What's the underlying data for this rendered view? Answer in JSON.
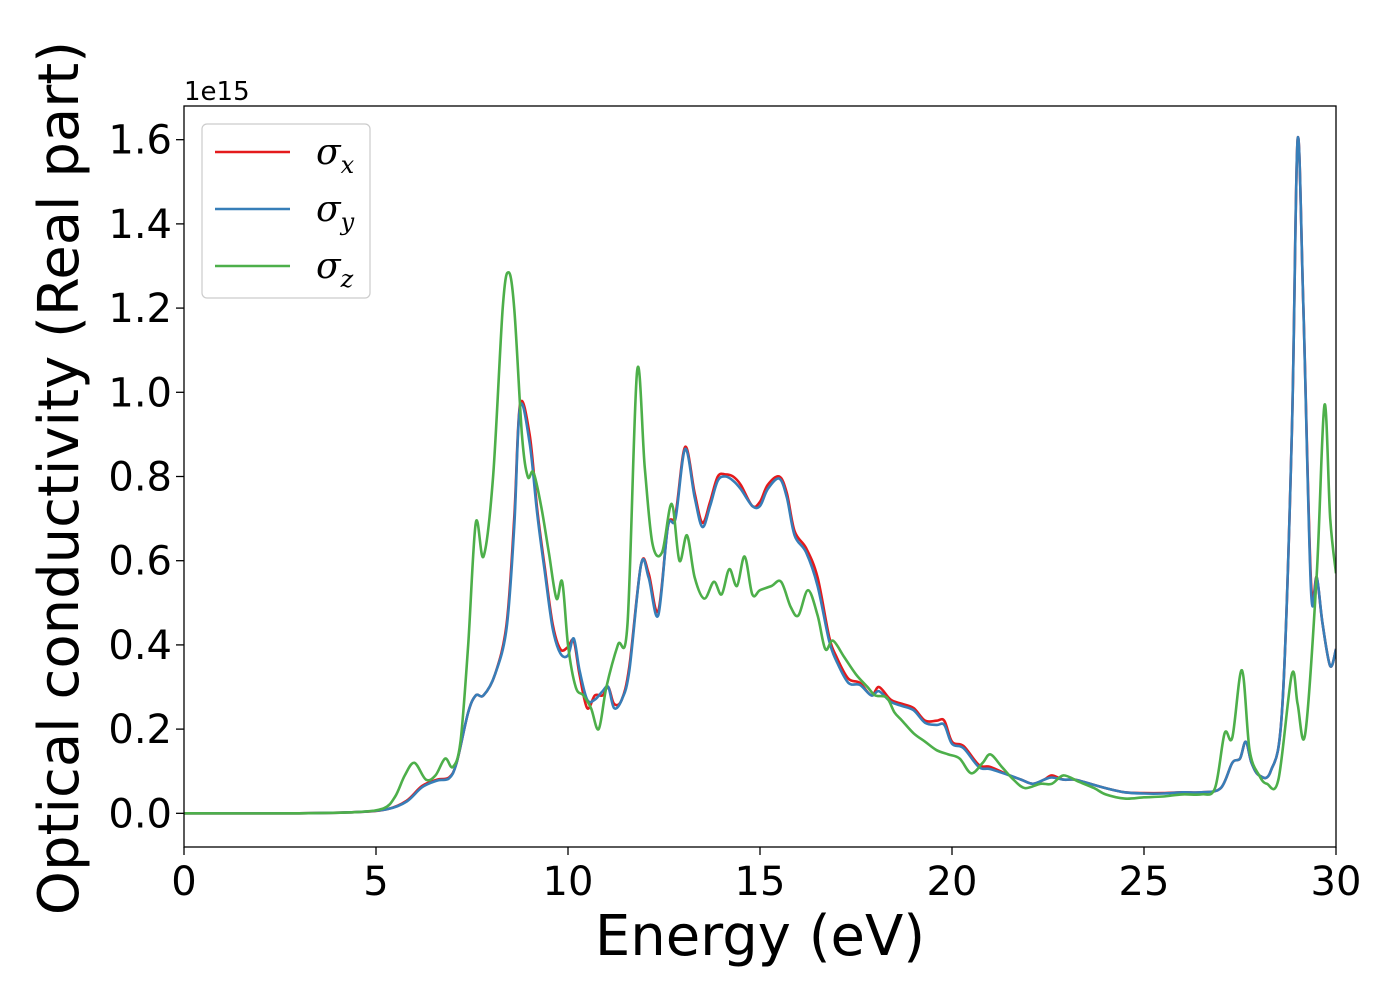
{
  "chart_data": {
    "type": "line",
    "title": "",
    "xlabel": "Energy (eV)",
    "ylabel": "Optical conductivity (Real part)",
    "y_offset_label": "1e15",
    "xlim": [
      0,
      30
    ],
    "ylim": [
      -0.08,
      1.68
    ],
    "x_ticks": [
      0,
      5,
      10,
      15,
      20,
      25,
      30
    ],
    "y_ticks": [
      0.0,
      0.2,
      0.4,
      0.6,
      0.8,
      1.0,
      1.2,
      1.4,
      1.6
    ],
    "x_tick_labels": [
      "0",
      "5",
      "10",
      "15",
      "20",
      "25",
      "30"
    ],
    "y_tick_labels": [
      "0.0",
      "0.2",
      "0.4",
      "0.6",
      "0.8",
      "1.0",
      "1.2",
      "1.4",
      "1.6"
    ],
    "grid": false,
    "legend_position": "top-left",
    "series": [
      {
        "name": "σx",
        "symbol": "σ",
        "subscript": "x",
        "color": "#e41a1c",
        "points": [
          [
            0,
            0
          ],
          [
            3,
            0
          ],
          [
            4.5,
            0.003
          ],
          [
            5.3,
            0.01
          ],
          [
            5.8,
            0.03
          ],
          [
            6.2,
            0.065
          ],
          [
            6.6,
            0.08
          ],
          [
            6.9,
            0.085
          ],
          [
            7.1,
            0.12
          ],
          [
            7.4,
            0.24
          ],
          [
            7.6,
            0.28
          ],
          [
            7.8,
            0.28
          ],
          [
            8.1,
            0.33
          ],
          [
            8.4,
            0.45
          ],
          [
            8.6,
            0.7
          ],
          [
            8.75,
            0.97
          ],
          [
            9.0,
            0.9
          ],
          [
            9.2,
            0.72
          ],
          [
            9.4,
            0.58
          ],
          [
            9.6,
            0.45
          ],
          [
            9.8,
            0.39
          ],
          [
            10.0,
            0.395
          ],
          [
            10.15,
            0.41
          ],
          [
            10.3,
            0.33
          ],
          [
            10.5,
            0.25
          ],
          [
            10.7,
            0.28
          ],
          [
            10.9,
            0.28
          ],
          [
            11.05,
            0.3
          ],
          [
            11.2,
            0.26
          ],
          [
            11.4,
            0.27
          ],
          [
            11.6,
            0.35
          ],
          [
            11.9,
            0.59
          ],
          [
            12.1,
            0.57
          ],
          [
            12.35,
            0.48
          ],
          [
            12.6,
            0.68
          ],
          [
            12.8,
            0.71
          ],
          [
            13.05,
            0.87
          ],
          [
            13.3,
            0.76
          ],
          [
            13.5,
            0.69
          ],
          [
            13.7,
            0.74
          ],
          [
            13.9,
            0.8
          ],
          [
            14.1,
            0.805
          ],
          [
            14.3,
            0.8
          ],
          [
            14.5,
            0.78
          ],
          [
            14.8,
            0.73
          ],
          [
            15.0,
            0.74
          ],
          [
            15.2,
            0.78
          ],
          [
            15.5,
            0.8
          ],
          [
            15.7,
            0.76
          ],
          [
            15.9,
            0.67
          ],
          [
            16.2,
            0.63
          ],
          [
            16.5,
            0.56
          ],
          [
            16.8,
            0.42
          ],
          [
            17.0,
            0.37
          ],
          [
            17.3,
            0.32
          ],
          [
            17.6,
            0.31
          ],
          [
            17.9,
            0.28
          ],
          [
            18.1,
            0.3
          ],
          [
            18.4,
            0.27
          ],
          [
            18.7,
            0.26
          ],
          [
            19.0,
            0.25
          ],
          [
            19.3,
            0.22
          ],
          [
            19.6,
            0.22
          ],
          [
            19.8,
            0.22
          ],
          [
            20.0,
            0.17
          ],
          [
            20.3,
            0.16
          ],
          [
            20.7,
            0.115
          ],
          [
            21.0,
            0.11
          ],
          [
            21.5,
            0.09
          ],
          [
            21.8,
            0.08
          ],
          [
            22.1,
            0.07
          ],
          [
            22.4,
            0.08
          ],
          [
            22.6,
            0.09
          ],
          [
            22.9,
            0.08
          ],
          [
            23.2,
            0.08
          ],
          [
            23.6,
            0.07
          ],
          [
            24.0,
            0.06
          ],
          [
            24.5,
            0.05
          ],
          [
            25.0,
            0.048
          ],
          [
            25.5,
            0.048
          ],
          [
            26.0,
            0.05
          ],
          [
            26.5,
            0.05
          ],
          [
            27.0,
            0.06
          ],
          [
            27.3,
            0.12
          ],
          [
            27.5,
            0.13
          ],
          [
            27.65,
            0.17
          ],
          [
            27.8,
            0.12
          ],
          [
            28.0,
            0.09
          ],
          [
            28.3,
            0.1
          ],
          [
            28.6,
            0.25
          ],
          [
            28.85,
            0.9
          ],
          [
            29.0,
            1.6
          ],
          [
            29.15,
            1.2
          ],
          [
            29.35,
            0.55
          ],
          [
            29.5,
            0.56
          ],
          [
            29.65,
            0.45
          ],
          [
            29.85,
            0.35
          ],
          [
            30.0,
            0.39
          ]
        ]
      },
      {
        "name": "σy",
        "symbol": "σ",
        "subscript": "y",
        "color": "#377eb8",
        "points": [
          [
            0,
            0
          ],
          [
            3,
            0
          ],
          [
            4.5,
            0.003
          ],
          [
            5.3,
            0.01
          ],
          [
            5.8,
            0.028
          ],
          [
            6.2,
            0.062
          ],
          [
            6.6,
            0.078
          ],
          [
            6.9,
            0.083
          ],
          [
            7.1,
            0.12
          ],
          [
            7.4,
            0.24
          ],
          [
            7.6,
            0.28
          ],
          [
            7.8,
            0.28
          ],
          [
            8.1,
            0.33
          ],
          [
            8.4,
            0.44
          ],
          [
            8.6,
            0.68
          ],
          [
            8.75,
            0.965
          ],
          [
            9.0,
            0.88
          ],
          [
            9.2,
            0.71
          ],
          [
            9.4,
            0.57
          ],
          [
            9.6,
            0.44
          ],
          [
            9.8,
            0.38
          ],
          [
            10.0,
            0.375
          ],
          [
            10.15,
            0.415
          ],
          [
            10.3,
            0.34
          ],
          [
            10.5,
            0.27
          ],
          [
            10.7,
            0.27
          ],
          [
            10.9,
            0.29
          ],
          [
            11.05,
            0.3
          ],
          [
            11.2,
            0.25
          ],
          [
            11.4,
            0.27
          ],
          [
            11.6,
            0.34
          ],
          [
            11.9,
            0.59
          ],
          [
            12.1,
            0.56
          ],
          [
            12.35,
            0.47
          ],
          [
            12.6,
            0.68
          ],
          [
            12.8,
            0.7
          ],
          [
            13.05,
            0.865
          ],
          [
            13.3,
            0.75
          ],
          [
            13.5,
            0.68
          ],
          [
            13.7,
            0.73
          ],
          [
            13.9,
            0.79
          ],
          [
            14.1,
            0.8
          ],
          [
            14.3,
            0.79
          ],
          [
            14.5,
            0.77
          ],
          [
            14.8,
            0.73
          ],
          [
            15.0,
            0.73
          ],
          [
            15.2,
            0.77
          ],
          [
            15.5,
            0.795
          ],
          [
            15.7,
            0.75
          ],
          [
            15.9,
            0.66
          ],
          [
            16.2,
            0.62
          ],
          [
            16.5,
            0.54
          ],
          [
            16.8,
            0.41
          ],
          [
            17.0,
            0.36
          ],
          [
            17.3,
            0.31
          ],
          [
            17.6,
            0.305
          ],
          [
            17.9,
            0.28
          ],
          [
            18.1,
            0.29
          ],
          [
            18.4,
            0.265
          ],
          [
            18.7,
            0.255
          ],
          [
            19.0,
            0.245
          ],
          [
            19.3,
            0.215
          ],
          [
            19.6,
            0.21
          ],
          [
            19.8,
            0.21
          ],
          [
            20.0,
            0.165
          ],
          [
            20.3,
            0.155
          ],
          [
            20.7,
            0.11
          ],
          [
            21.0,
            0.105
          ],
          [
            21.5,
            0.09
          ],
          [
            21.8,
            0.08
          ],
          [
            22.1,
            0.07
          ],
          [
            22.4,
            0.08
          ],
          [
            22.6,
            0.085
          ],
          [
            22.9,
            0.08
          ],
          [
            23.2,
            0.08
          ],
          [
            23.6,
            0.07
          ],
          [
            24.0,
            0.06
          ],
          [
            24.5,
            0.05
          ],
          [
            25.0,
            0.047
          ],
          [
            25.5,
            0.047
          ],
          [
            26.0,
            0.05
          ],
          [
            26.5,
            0.05
          ],
          [
            27.0,
            0.06
          ],
          [
            27.3,
            0.12
          ],
          [
            27.5,
            0.13
          ],
          [
            27.65,
            0.17
          ],
          [
            27.8,
            0.12
          ],
          [
            28.0,
            0.09
          ],
          [
            28.3,
            0.1
          ],
          [
            28.6,
            0.25
          ],
          [
            28.85,
            0.9
          ],
          [
            29.0,
            1.6
          ],
          [
            29.15,
            1.2
          ],
          [
            29.35,
            0.53
          ],
          [
            29.5,
            0.56
          ],
          [
            29.65,
            0.45
          ],
          [
            29.85,
            0.35
          ],
          [
            30.0,
            0.39
          ]
        ]
      },
      {
        "name": "σz",
        "symbol": "σ",
        "subscript": "z",
        "color": "#4daf4a",
        "points": [
          [
            0,
            0
          ],
          [
            3,
            0
          ],
          [
            4.5,
            0.003
          ],
          [
            5.2,
            0.012
          ],
          [
            5.5,
            0.04
          ],
          [
            5.75,
            0.09
          ],
          [
            6.0,
            0.12
          ],
          [
            6.3,
            0.08
          ],
          [
            6.55,
            0.09
          ],
          [
            6.8,
            0.13
          ],
          [
            7.0,
            0.11
          ],
          [
            7.2,
            0.17
          ],
          [
            7.4,
            0.4
          ],
          [
            7.6,
            0.69
          ],
          [
            7.8,
            0.61
          ],
          [
            8.05,
            0.8
          ],
          [
            8.3,
            1.2
          ],
          [
            8.45,
            1.285
          ],
          [
            8.6,
            1.2
          ],
          [
            8.8,
            0.9
          ],
          [
            8.95,
            0.8
          ],
          [
            9.1,
            0.81
          ],
          [
            9.3,
            0.73
          ],
          [
            9.5,
            0.62
          ],
          [
            9.7,
            0.51
          ],
          [
            9.85,
            0.55
          ],
          [
            10.0,
            0.4
          ],
          [
            10.2,
            0.3
          ],
          [
            10.4,
            0.28
          ],
          [
            10.6,
            0.25
          ],
          [
            10.8,
            0.2
          ],
          [
            11.0,
            0.3
          ],
          [
            11.3,
            0.4
          ],
          [
            11.55,
            0.45
          ],
          [
            11.8,
            1.05
          ],
          [
            12.0,
            0.82
          ],
          [
            12.2,
            0.64
          ],
          [
            12.45,
            0.62
          ],
          [
            12.7,
            0.735
          ],
          [
            12.9,
            0.6
          ],
          [
            13.1,
            0.66
          ],
          [
            13.3,
            0.56
          ],
          [
            13.55,
            0.51
          ],
          [
            13.8,
            0.55
          ],
          [
            14.0,
            0.52
          ],
          [
            14.2,
            0.58
          ],
          [
            14.4,
            0.54
          ],
          [
            14.6,
            0.61
          ],
          [
            14.8,
            0.52
          ],
          [
            15.0,
            0.53
          ],
          [
            15.3,
            0.54
          ],
          [
            15.55,
            0.55
          ],
          [
            15.8,
            0.49
          ],
          [
            16.0,
            0.47
          ],
          [
            16.25,
            0.53
          ],
          [
            16.5,
            0.47
          ],
          [
            16.7,
            0.39
          ],
          [
            16.9,
            0.41
          ],
          [
            17.2,
            0.37
          ],
          [
            17.5,
            0.33
          ],
          [
            17.8,
            0.3
          ],
          [
            18.0,
            0.28
          ],
          [
            18.3,
            0.275
          ],
          [
            18.5,
            0.24
          ],
          [
            18.7,
            0.22
          ],
          [
            19.0,
            0.19
          ],
          [
            19.3,
            0.17
          ],
          [
            19.6,
            0.15
          ],
          [
            19.9,
            0.14
          ],
          [
            20.2,
            0.13
          ],
          [
            20.5,
            0.095
          ],
          [
            20.8,
            0.12
          ],
          [
            21.0,
            0.14
          ],
          [
            21.3,
            0.11
          ],
          [
            21.6,
            0.08
          ],
          [
            21.9,
            0.06
          ],
          [
            22.3,
            0.07
          ],
          [
            22.6,
            0.07
          ],
          [
            22.9,
            0.09
          ],
          [
            23.3,
            0.075
          ],
          [
            23.7,
            0.06
          ],
          [
            24.0,
            0.045
          ],
          [
            24.5,
            0.035
          ],
          [
            25.0,
            0.038
          ],
          [
            25.5,
            0.04
          ],
          [
            26.0,
            0.045
          ],
          [
            26.5,
            0.045
          ],
          [
            26.85,
            0.06
          ],
          [
            27.1,
            0.19
          ],
          [
            27.3,
            0.18
          ],
          [
            27.55,
            0.34
          ],
          [
            27.75,
            0.15
          ],
          [
            28.0,
            0.09
          ],
          [
            28.2,
            0.07
          ],
          [
            28.5,
            0.08
          ],
          [
            28.85,
            0.33
          ],
          [
            29.0,
            0.26
          ],
          [
            29.2,
            0.19
          ],
          [
            29.5,
            0.57
          ],
          [
            29.7,
            0.97
          ],
          [
            29.85,
            0.7
          ],
          [
            30.0,
            0.57
          ]
        ]
      }
    ]
  }
}
